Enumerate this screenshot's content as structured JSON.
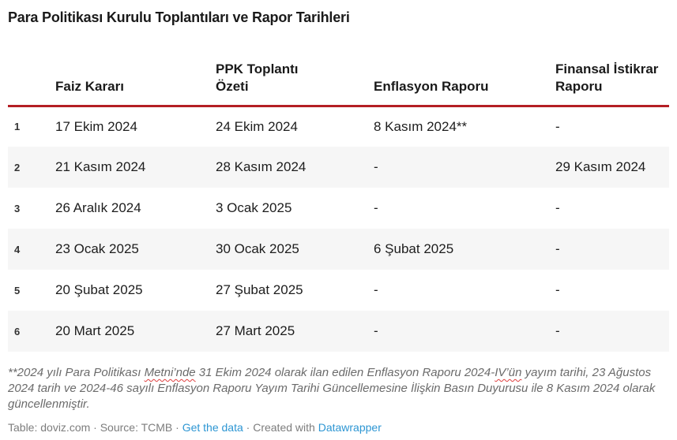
{
  "title": "Para Politikası Kurulu Toplantıları ve Rapor Tarihleri",
  "chart_data": {
    "type": "table",
    "title": "Para Politikası Kurulu Toplantıları ve Rapor Tarihleri",
    "columns": [
      "",
      "Faiz Kararı",
      "PPK Toplantı Özeti",
      "Enflasyon Raporu",
      "Finansal İstikrar Raporu"
    ],
    "rows": [
      [
        "1",
        "17 Ekim 2024",
        "24 Ekim 2024",
        "8 Kasım 2024**",
        "-"
      ],
      [
        "2",
        "21 Kasım 2024",
        "28 Kasım 2024",
        "-",
        "29 Kasım 2024"
      ],
      [
        "3",
        "26 Aralık 2024",
        "3 Ocak 2025",
        "-",
        "-"
      ],
      [
        "4",
        "23 Ocak 2025",
        "30 Ocak 2025",
        "6 Şubat 2025",
        "-"
      ],
      [
        "5",
        "20 Şubat 2025",
        "27 Şubat 2025",
        "-",
        "-"
      ],
      [
        "6",
        "20 Mart 2025",
        "27 Mart 2025",
        "-",
        "-"
      ]
    ],
    "layout": {
      "alternating_row_stripes": true,
      "header_rule_color": "#b41e24"
    }
  },
  "footnote": {
    "segments": [
      {
        "text": "**2024 yılı Para Politikası ",
        "squiggle": false
      },
      {
        "text": "Metni’nde",
        "squiggle": true
      },
      {
        "text": " 31 Ekim 2024 olarak ilan edilen Enflasyon Raporu 2024-",
        "squiggle": false
      },
      {
        "text": "IV’ün",
        "squiggle": true
      },
      {
        "text": " yayım tarihi, 23 Ağustos 2024 tarih ve 2024-46 sayılı Enflasyon Raporu Yayım Tarihi Güncellemesine İlişkin Basın Duyurusu ile 8 Kasım 2024 olarak güncellenmiştir.",
        "squiggle": false
      }
    ]
  },
  "footer": {
    "credit": "Table: doviz.com · Source: TCMB · ",
    "get_data_label": "Get the data",
    "created_with": " · Created with ",
    "datawrapper_label": "Datawrapper"
  },
  "colors": {
    "header_rule": "#b41e24",
    "link_blue": "#2d96d3",
    "alt_row_bg": "#f6f6f6",
    "squiggle_red": "#e03e3e",
    "text_dark": "#1a1a1a",
    "footnote_gray": "#6b6b6b",
    "footer_gray": "#7d7d7d"
  }
}
